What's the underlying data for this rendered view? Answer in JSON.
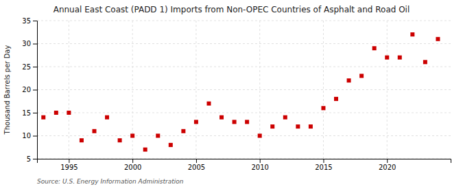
{
  "chart_data": {
    "type": "scatter",
    "title": "Annual East Coast (PADD 1) Imports from Non-OPEC Countries of Asphalt and Road Oil",
    "ylabel": "Thousand Barrels per Day",
    "source": "Source: U.S. Energy Information Administration",
    "x": [
      1993,
      1994,
      1995,
      1996,
      1997,
      1998,
      1999,
      2000,
      2001,
      2002,
      2003,
      2004,
      2005,
      2006,
      2007,
      2008,
      2009,
      2010,
      2011,
      2012,
      2013,
      2014,
      2015,
      2016,
      2017,
      2018,
      2019,
      2020,
      2021,
      2022,
      2023,
      2024
    ],
    "values": [
      14,
      15,
      15,
      9,
      11,
      14,
      9,
      10,
      7,
      10,
      8,
      11,
      13,
      17,
      14,
      13,
      13,
      10,
      12,
      14,
      12,
      12,
      16,
      18,
      22,
      23,
      29,
      27,
      27,
      32,
      26,
      31
    ],
    "color": "#cc0000",
    "marker": "square",
    "xlim": [
      1992.5,
      2025
    ],
    "ylim": [
      5,
      35
    ],
    "xticks": [
      1995,
      2000,
      2005,
      2010,
      2015,
      2020
    ],
    "yticks": [
      5,
      10,
      15,
      20,
      25,
      30,
      35
    ],
    "grid": true
  }
}
